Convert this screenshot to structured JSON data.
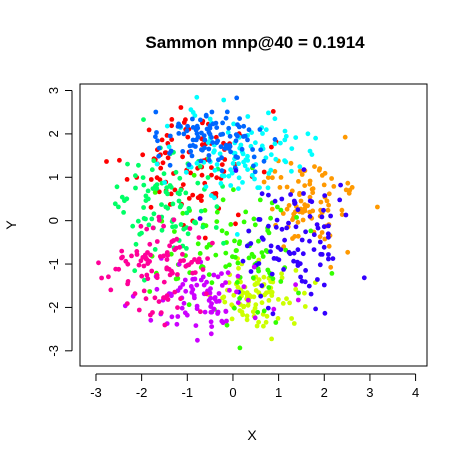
{
  "chart_data": {
    "type": "scatter",
    "title": "Sammon mnp@40 = 0.1914",
    "xlabel": "X",
    "ylabel": "Y",
    "xlim": [
      -3.35,
      4.25
    ],
    "ylim": [
      -3.35,
      3.15
    ],
    "x_ticks": [
      -3,
      -2,
      -1,
      0,
      1,
      2,
      3,
      4
    ],
    "y_ticks": [
      -3,
      -2,
      -1,
      0,
      1,
      2,
      3
    ],
    "x_tick_labels": [
      "-3",
      "-2",
      "-1",
      "0",
      "1",
      "2",
      "3",
      "4"
    ],
    "y_tick_labels": [
      "-3",
      "-2",
      "-1",
      "0",
      "1",
      "2",
      "3"
    ],
    "grid": false,
    "legend": "none",
    "point_colors": {
      "red": "#ff0000",
      "orange": "#ff9900",
      "yellow": "#ccff00",
      "green": "#33ff00",
      "spring": "#00ff66",
      "cyan": "#00ffff",
      "azure": "#0066ff",
      "violet": "#3300ff",
      "purple": "#cc00ff",
      "magenta": "#ff0099"
    },
    "clusters": [
      {
        "color": "#ff0000",
        "center": [
          -0.9,
          1.3
        ],
        "spread": [
          0.9,
          0.9
        ],
        "count": 95
      },
      {
        "color": "#ff9900",
        "center": [
          1.7,
          0.55
        ],
        "spread": [
          0.8,
          0.75
        ],
        "count": 90
      },
      {
        "color": "#ccff00",
        "center": [
          0.5,
          -1.7
        ],
        "spread": [
          0.6,
          0.55
        ],
        "count": 90
      },
      {
        "color": "#33ff00",
        "center": [
          -0.1,
          -0.7
        ],
        "spread": [
          1.1,
          1.0
        ],
        "count": 100
      },
      {
        "color": "#00ff66",
        "center": [
          -1.5,
          0.4
        ],
        "spread": [
          0.9,
          0.9
        ],
        "count": 95
      },
      {
        "color": "#00ffff",
        "center": [
          0.2,
          1.5
        ],
        "spread": [
          0.9,
          0.75
        ],
        "count": 100
      },
      {
        "color": "#0066ff",
        "center": [
          -0.6,
          1.9
        ],
        "spread": [
          0.85,
          0.5
        ],
        "count": 100
      },
      {
        "color": "#3300ff",
        "center": [
          1.4,
          -0.6
        ],
        "spread": [
          0.85,
          0.95
        ],
        "count": 95
      },
      {
        "color": "#cc00ff",
        "center": [
          -0.7,
          -1.8
        ],
        "spread": [
          0.85,
          0.6
        ],
        "count": 90
      },
      {
        "color": "#ff0099",
        "center": [
          -1.6,
          -1.0
        ],
        "spread": [
          0.7,
          0.7
        ],
        "count": 100
      }
    ]
  }
}
